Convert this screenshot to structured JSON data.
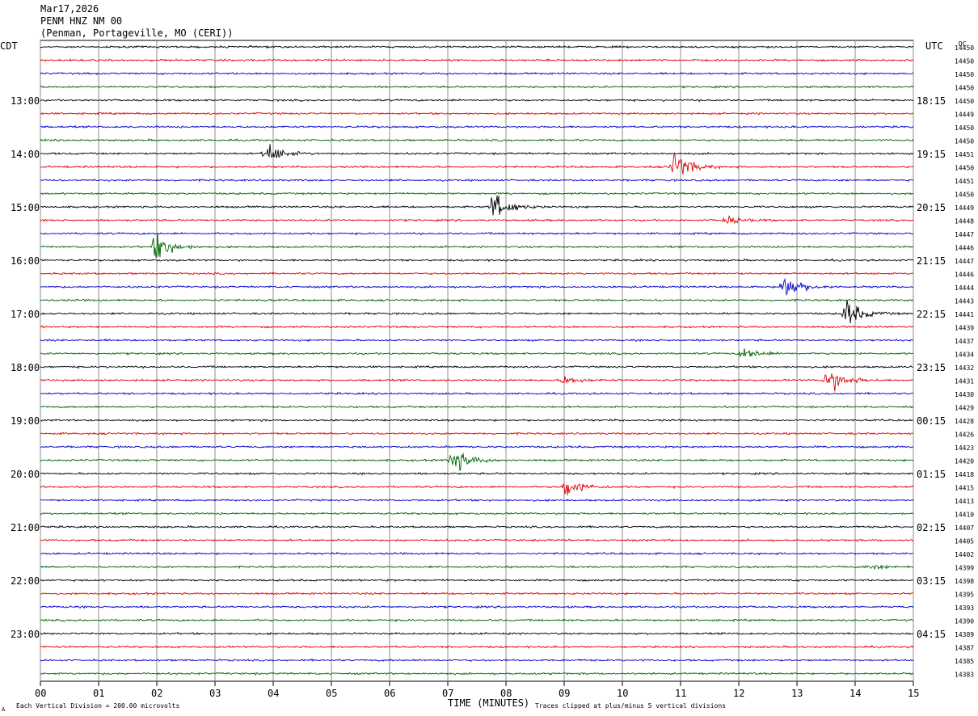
{
  "header": {
    "date": "Mar17,2026",
    "station": "PENM HNZ NM 00",
    "location": "(Penman, Portageville, MO (CERI))"
  },
  "left_tz_label": "CDT",
  "right_tz_label": "UTC",
  "dc_label": "DC",
  "footer": {
    "scale_note": "Each Vertical Division =  200.00 microvolts",
    "clip_note": "Traces clipped at plus/minus 5 vertical divisions",
    "corner_mark": "A"
  },
  "colors": {
    "cycle": [
      "#000000",
      "#e00000",
      "#0000c8",
      "#006400"
    ],
    "grid": "#8c8c8c"
  },
  "chart_data": {
    "type": "line",
    "xlabel": "TIME (MINUTES)",
    "xlim": [
      0,
      15
    ],
    "x_ticks": [
      "00",
      "01",
      "02",
      "03",
      "04",
      "05",
      "06",
      "07",
      "08",
      "09",
      "10",
      "11",
      "12",
      "13",
      "14",
      "15"
    ],
    "rows_per_hour": 4,
    "minutes_per_row": 15,
    "left_hour_labels": [
      "13:00",
      "14:00",
      "15:00",
      "16:00",
      "17:00",
      "18:00",
      "19:00",
      "20:00",
      "21:00",
      "22:00",
      "23:00"
    ],
    "right_hour_labels": [
      "18:15",
      "19:15",
      "20:15",
      "21:15",
      "22:15",
      "23:15",
      "00:15",
      "01:15",
      "02:15",
      "03:15",
      "04:15"
    ],
    "first_labeled_row": 4,
    "dc_offsets": [
      14450,
      14450,
      14450,
      14450,
      14450,
      14449,
      14450,
      14450,
      14451,
      14450,
      14451,
      14450,
      14449,
      14448,
      14447,
      14446,
      14447,
      14446,
      14444,
      14443,
      14441,
      14439,
      14437,
      14434,
      14432,
      14431,
      14430,
      14429,
      14428,
      14426,
      14423,
      14420,
      14418,
      14415,
      14413,
      14410,
      14407,
      14405,
      14402,
      14399,
      14398,
      14395,
      14393,
      14390,
      14389,
      14387,
      14385,
      14383
    ],
    "events": [
      {
        "row": 8,
        "minute": 3.9,
        "amplitude": 10
      },
      {
        "row": 9,
        "minute": 10.9,
        "amplitude": 16
      },
      {
        "row": 12,
        "minute": 7.8,
        "amplitude": 14
      },
      {
        "row": 13,
        "minute": 11.8,
        "amplitude": 4
      },
      {
        "row": 15,
        "minute": 2.0,
        "amplitude": 14
      },
      {
        "row": 18,
        "minute": 12.8,
        "amplitude": 14
      },
      {
        "row": 20,
        "minute": 13.85,
        "amplitude": 14
      },
      {
        "row": 23,
        "minute": 12.1,
        "amplitude": 6
      },
      {
        "row": 25,
        "minute": 13.55,
        "amplitude": 14
      },
      {
        "row": 25,
        "minute": 9.0,
        "amplitude": 4
      },
      {
        "row": 31,
        "minute": 7.1,
        "amplitude": 13
      },
      {
        "row": 33,
        "minute": 9.05,
        "amplitude": 10
      },
      {
        "row": 39,
        "minute": 14.25,
        "amplitude": 3
      }
    ]
  }
}
